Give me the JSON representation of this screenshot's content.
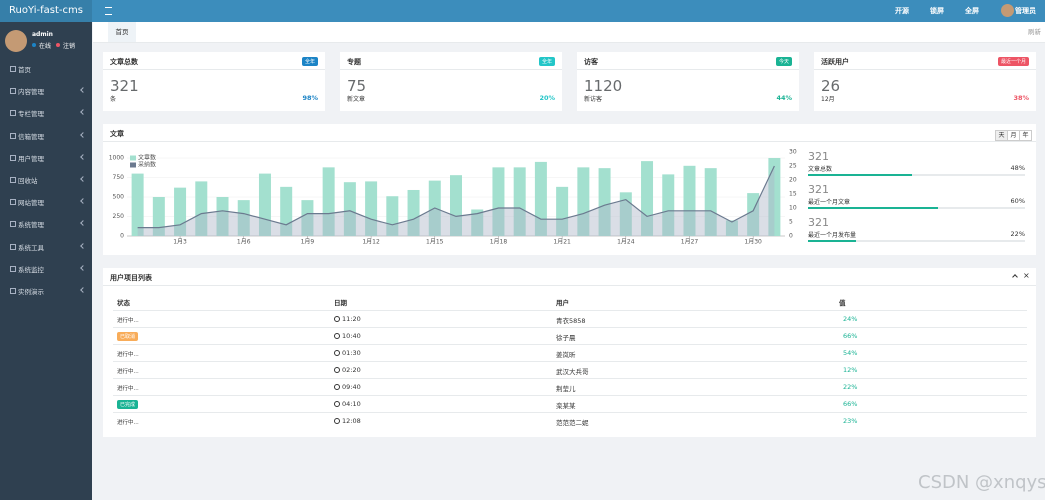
{
  "brand": "RuoYi-fast-cms",
  "topnav": [
    "开源",
    "锁屏",
    "全屏",
    "管理员"
  ],
  "user": {
    "name": "admin",
    "status": "在线",
    "logout": "注销"
  },
  "menu": [
    "首页",
    "内容管理",
    "专栏管理",
    "信箱管理",
    "用户管理",
    "回收站",
    "网站管理",
    "系统管理",
    "系统工具",
    "系统监控",
    "实例演示"
  ],
  "tabs": {
    "active": "首页",
    "refresh": "刷新"
  },
  "cards": [
    {
      "title": "文章总数",
      "badge": "全年",
      "badge_color": "#1c84c6",
      "value": 321,
      "unit": "条",
      "percent": "98%"
    },
    {
      "title": "专题",
      "badge": "全年",
      "badge_color": "#23c6c8",
      "value": 75,
      "unit": "新文章",
      "percent": "20%"
    },
    {
      "title": "访客",
      "badge": "今天",
      "badge_color": "#1ab394",
      "value": 1120,
      "unit": "新访客",
      "percent": "44%"
    },
    {
      "title": "活跃用户",
      "badge": "最近一个月",
      "badge_color": "#ed5565",
      "value": 26,
      "unit": "12月",
      "percent": "38%"
    }
  ],
  "chart_panel": {
    "title": "文章",
    "ranges": [
      "天",
      "月",
      "年"
    ],
    "progress": [
      {
        "value": 321,
        "label": "文章总数",
        "percent": {
          "value": 48,
          "label": "48%"
        }
      },
      {
        "value": 321,
        "label": "最近一个月文章",
        "percent": {
          "value": 60,
          "label": "60%"
        }
      },
      {
        "value": 321,
        "label": "最近一个月发布量",
        "percent": {
          "value": 22,
          "label": "22%"
        }
      }
    ]
  },
  "chart_data": {
    "type": "bar",
    "categories": [
      null,
      null,
      "1月3",
      null,
      null,
      "1月6",
      null,
      null,
      "1月9",
      null,
      null,
      "1月12",
      null,
      null,
      "1月15",
      null,
      null,
      "1月18",
      null,
      null,
      "1月21",
      null,
      null,
      "1月24",
      null,
      null,
      "1月27",
      null,
      null,
      "1月30",
      null
    ],
    "series": [
      {
        "name": "文章数",
        "color": "#a3e0cf",
        "values": [
          800,
          500,
          620,
          700,
          500,
          460,
          800,
          630,
          460,
          880,
          690,
          700,
          510,
          590,
          710,
          780,
          340,
          880,
          880,
          950,
          630,
          880,
          870,
          560,
          960,
          790,
          900,
          870,
          200,
          550,
          1000
        ]
      },
      {
        "name": "采纳数",
        "color": "#6b7a8f",
        "type": "line",
        "axis": "y2",
        "values": [
          3,
          3,
          4,
          8,
          9,
          8,
          6,
          4,
          8,
          8,
          9,
          6,
          4,
          6,
          10,
          7,
          8,
          10,
          10,
          6,
          6,
          8,
          11,
          13,
          7,
          9,
          9,
          9,
          5,
          9,
          25
        ]
      }
    ],
    "ylim": [
      0,
      1000
    ],
    "yticks": [
      0,
      250,
      500,
      750,
      1000
    ],
    "y2lim": [
      0,
      30
    ],
    "y2ticks": [
      0,
      5,
      10,
      15,
      20,
      25,
      30
    ],
    "grid": true,
    "legend": "upper left"
  },
  "table": {
    "title": "用户项目列表",
    "headers": [
      "状态",
      "日期",
      "用户",
      "值"
    ],
    "rows": [
      {
        "status": "进行中...",
        "time": "11:20",
        "user": "青衣5858",
        "value": "24%"
      },
      {
        "status": "已取消",
        "badge": "#f8ac59",
        "time": "10:40",
        "user": "徐子晨",
        "value": "66%"
      },
      {
        "status": "进行中...",
        "time": "01:30",
        "user": "姜岚昕",
        "value": "54%"
      },
      {
        "status": "进行中...",
        "time": "02:20",
        "user": "武汉大兵哥",
        "value": "12%"
      },
      {
        "status": "进行中...",
        "time": "09:40",
        "user": "荆莹儿",
        "value": "22%"
      },
      {
        "status": "已完成",
        "badge": "#1ab394",
        "time": "04:10",
        "user": "栾某某",
        "value": "66%"
      },
      {
        "status": "进行中...",
        "time": "12:08",
        "user": "范范范二妮",
        "value": "23%"
      }
    ]
  },
  "watermark": "CSDN @xnqys"
}
